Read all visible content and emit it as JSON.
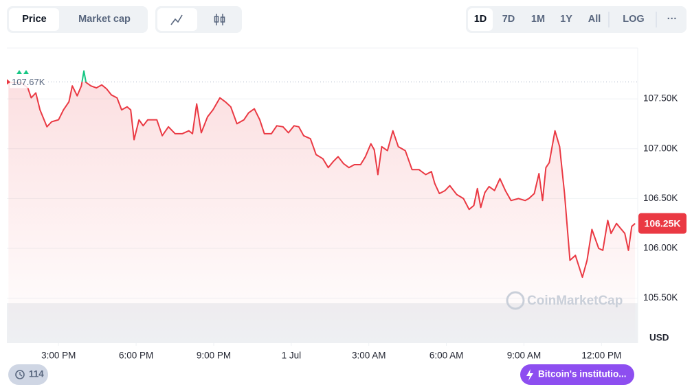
{
  "toolbar": {
    "views": [
      "Price",
      "Market cap"
    ],
    "ranges": [
      "1D",
      "7D",
      "1M",
      "1Y",
      "All"
    ],
    "scale": "LOG",
    "more": "···"
  },
  "chart_data": {
    "type": "line",
    "x": [
      13.06,
      13.54,
      13.81,
      13.94,
      14.12,
      14.28,
      14.55,
      14.73,
      15.0,
      15.19,
      15.4,
      15.53,
      15.72,
      15.88,
      15.98,
      16.06,
      16.25,
      16.46,
      16.67,
      16.86,
      17.04,
      17.26,
      17.44,
      17.65,
      17.79,
      17.92,
      18.11,
      18.27,
      18.45,
      18.8,
      19.01,
      19.25,
      19.51,
      19.78,
      20.04,
      20.18,
      20.34,
      20.52,
      20.76,
      20.97,
      21.24,
      21.45,
      21.66,
      21.9,
      22.17,
      22.35,
      22.57,
      22.78,
      22.96,
      23.23,
      23.44,
      23.68,
      23.89,
      24.11,
      24.29,
      24.48,
      24.74,
      24.96,
      25.22,
      25.43,
      25.62,
      25.81,
      26.02,
      26.23,
      26.44,
      26.68,
      26.87,
      27.08,
      27.21,
      27.35,
      27.5,
      27.72,
      27.93,
      28.14,
      28.41,
      28.67,
      28.94,
      29.2,
      29.42,
      29.55,
      29.73,
      29.95,
      30.13,
      30.4,
      30.66,
      30.88,
      31.06,
      31.2,
      31.33,
      31.49,
      31.65,
      31.86,
      32.07,
      32.28,
      32.5,
      32.79,
      33.05,
      33.19,
      33.4,
      33.58,
      33.72,
      33.85,
      33.98,
      34.2,
      34.38,
      34.57,
      34.78,
      34.99,
      35.26,
      35.44,
      35.63,
      35.89,
      36.05,
      36.24,
      36.37,
      36.58,
      36.77,
      36.9,
      37.04,
      37.17,
      37.3
    ],
    "values": [
      107665,
      107665,
      107610,
      107510,
      107560,
      107390,
      107220,
      107270,
      107290,
      107390,
      107470,
      107630,
      107530,
      107630,
      107780,
      107665,
      107630,
      107610,
      107640,
      107600,
      107540,
      107510,
      107390,
      107420,
      107390,
      107090,
      107290,
      107230,
      107290,
      107290,
      107130,
      107220,
      107150,
      107150,
      107180,
      107150,
      107450,
      107160,
      107320,
      107390,
      107510,
      107470,
      107420,
      107250,
      107290,
      107360,
      107400,
      107290,
      107150,
      107150,
      107230,
      107220,
      107160,
      107230,
      107220,
      107130,
      107100,
      106940,
      106900,
      106810,
      106870,
      106920,
      106850,
      106810,
      106840,
      106840,
      106920,
      107050,
      106990,
      106740,
      107020,
      106980,
      107180,
      107020,
      106980,
      106790,
      106790,
      106740,
      106770,
      106650,
      106550,
      106580,
      106630,
      106540,
      106500,
      106390,
      106430,
      106600,
      106410,
      106560,
      106620,
      106580,
      106700,
      106580,
      106480,
      106500,
      106480,
      106500,
      106550,
      106750,
      106480,
      106810,
      106860,
      107180,
      107020,
      106550,
      105880,
      105930,
      105710,
      105880,
      106190,
      106000,
      105980,
      106280,
      106150,
      106250,
      106190,
      106150,
      105980,
      106220,
      106250
    ],
    "color": "#ea3943",
    "up_color": "#16c784",
    "xlim": [
      13,
      37.4
    ],
    "xticks": [
      {
        "value": 15,
        "label": "3:00 PM"
      },
      {
        "value": 18,
        "label": "6:00 PM"
      },
      {
        "value": 21,
        "label": "9:00 PM"
      },
      {
        "value": 24,
        "label": "1 Jul"
      },
      {
        "value": 27,
        "label": "3:00 AM"
      },
      {
        "value": 30,
        "label": "6:00 AM"
      },
      {
        "value": 33,
        "label": "9:00 AM"
      },
      {
        "value": 36,
        "label": "12:00 PM"
      }
    ],
    "ylim": [
      105050,
      108010
    ],
    "yticks": [
      {
        "value": 105500,
        "label": "105.50K"
      },
      {
        "value": 106000,
        "label": "106.00K"
      },
      {
        "value": 106500,
        "label": "106.50K"
      },
      {
        "value": 107000,
        "label": "107.00K"
      },
      {
        "value": 107500,
        "label": "107.50K"
      }
    ],
    "ylabel": "USD",
    "open_price": {
      "value": 107670,
      "label": "107.67K"
    },
    "last_price": {
      "value": 106250,
      "label": "106.25K"
    },
    "grid": true
  },
  "watermark": "CoinMarketCap",
  "footer": {
    "events": 114,
    "news": "Bitcoin's institutio..."
  }
}
